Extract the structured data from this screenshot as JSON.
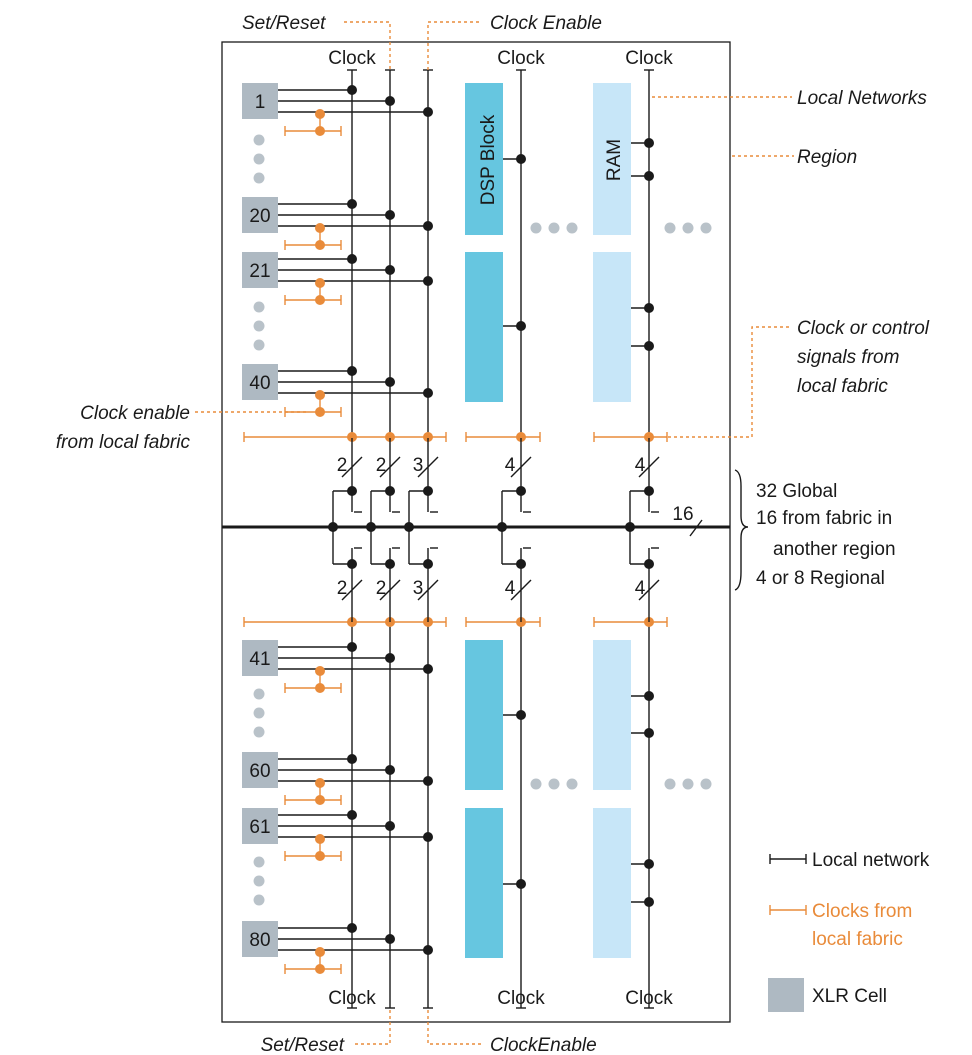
{
  "colors": {
    "xlr_cell": "#aeb9c2",
    "dsp": "#66c6e0",
    "ram": "#c7e6f8",
    "accent": "#e98b3a",
    "dot": "#1a1a1a",
    "ellipsis": "#b9c2c9"
  },
  "callouts": {
    "set_reset_top": "Set/Reset",
    "clock_enable_top": "Clock Enable",
    "local_networks": "Local Networks",
    "region": "Region",
    "clock_or_control_1": "Clock or control",
    "clock_or_control_2": "signals from",
    "clock_or_control_3": "local fabric",
    "clock_enable_fabric_1": "Clock enable",
    "clock_enable_fabric_2": "from local fabric",
    "set_reset_bottom": "Set/Reset",
    "clock_enable_bottom": "ClockEnable"
  },
  "clock_labels": {
    "clock": "Clock"
  },
  "cells": [
    "1",
    "20",
    "21",
    "40",
    "41",
    "60",
    "61",
    "80"
  ],
  "blocks": {
    "dsp": "DSP Block",
    "ram": "RAM"
  },
  "bus_widths": {
    "w2": "2",
    "w3": "3",
    "w4": "4",
    "w16": "16"
  },
  "global_bus": {
    "line1": "32 Global",
    "line2": "16 from fabric in",
    "line3": "another region",
    "line4": "4 or 8 Regional"
  },
  "legend": {
    "local_network": "Local network",
    "clocks_fabric_1": "Clocks from",
    "clocks_fabric_2": "local fabric",
    "xlr_cell": "XLR Cell"
  }
}
